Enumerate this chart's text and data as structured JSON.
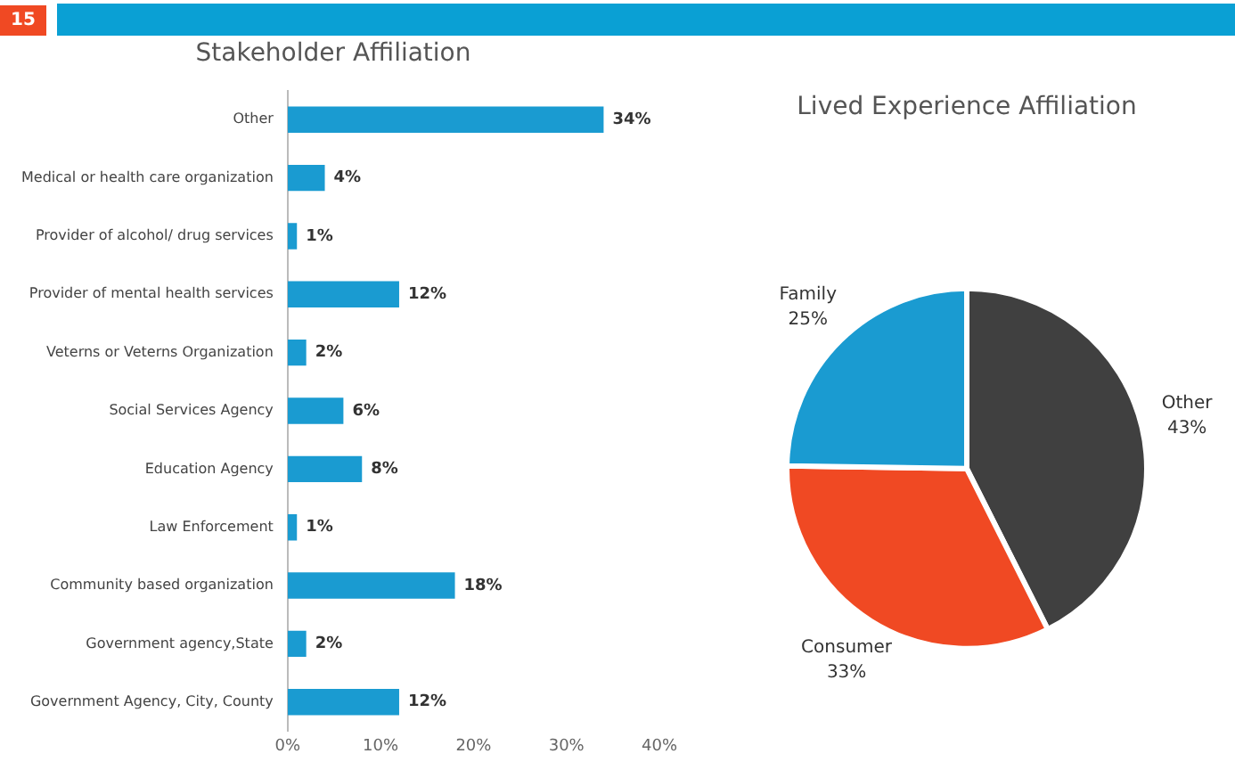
{
  "chart_data": [
    {
      "type": "bar",
      "orientation": "horizontal",
      "title": "Stakeholder Affiliation",
      "annotations": [
        "15"
      ],
      "categories": [
        "Other",
        "Medical or health care organization",
        "Provider of alcohol/ drug services",
        "Provider of mental health services",
        "Veterns or Veterns Organization",
        "Social Services Agency",
        "Education Agency",
        "Law Enforcement",
        "Community based organization",
        "Government agency,State",
        "Government Agency, City, County"
      ],
      "values": [
        34,
        4,
        1,
        12,
        2,
        6,
        8,
        1,
        18,
        2,
        12
      ],
      "value_labels": [
        "34%",
        "4%",
        "1%",
        "12%",
        "2%",
        "6%",
        "8%",
        "1%",
        "18%",
        "2%",
        "12%"
      ],
      "color": "#1a9bd1",
      "xlim": [
        0,
        40
      ],
      "xticks": [
        {
          "value": 0,
          "label": "0%"
        },
        {
          "value": 10,
          "label": "10%"
        },
        {
          "value": 20,
          "label": "20%"
        },
        {
          "value": 30,
          "label": "30%"
        },
        {
          "value": 40,
          "label": "40%"
        }
      ],
      "grid": false,
      "legend": false
    },
    {
      "type": "pie",
      "title": "Lived Experience Affiliation",
      "categories": [
        "Other",
        "Consumer",
        "Family"
      ],
      "values": [
        43,
        33,
        25
      ],
      "value_labels": [
        "43%",
        "33%",
        "25%"
      ],
      "colors": [
        "#404040",
        "#f04923",
        "#1a9bd1"
      ],
      "legend": false
    }
  ]
}
